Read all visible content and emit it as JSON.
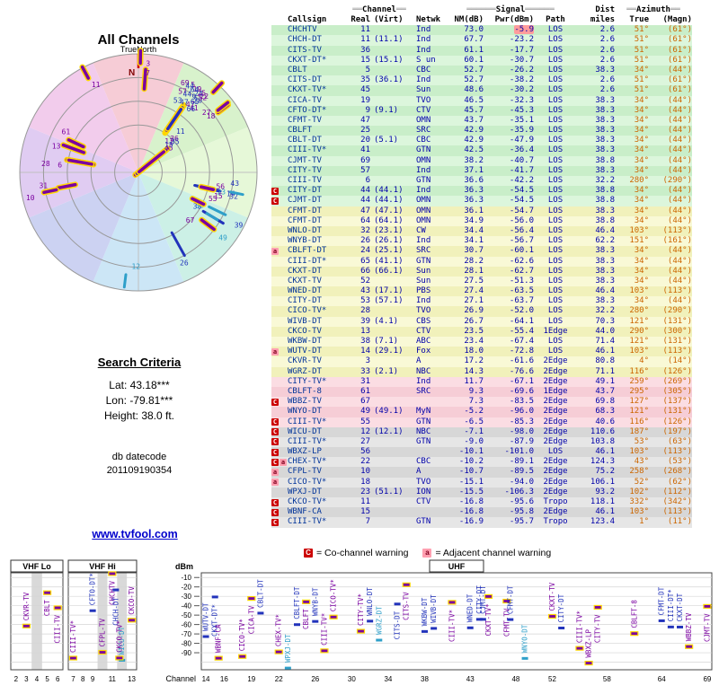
{
  "polar": {
    "title": "All Channels",
    "north_label": "TrueNorth",
    "n": "N"
  },
  "search": {
    "heading": "Search Criteria",
    "lat": "Lat: 43.18***",
    "lon": "Lon: -79.81***",
    "height": "Height: 38.0 ft.",
    "dbc1": "db datecode",
    "dbc2": "201109190354"
  },
  "link": {
    "label": "www.tvfool.com"
  },
  "legend": {
    "c": "C",
    "c_text": "= Co-channel warning",
    "a": "a",
    "a_text": "= Adjacent channel warning"
  },
  "table": {
    "deco": {
      "ch": "══",
      "sig": "══════",
      "az": "══"
    },
    "group": {
      "channel": "Channel",
      "signal": "Signal",
      "dist": "Dist",
      "azimuth": "Azimuth"
    },
    "cols": {
      "callsign": "Callsign",
      "real": "Real",
      "virt": "(Virt)",
      "netwk": "Netwk",
      "nm": "NM(dB)",
      "pwr": "Pwr(dBm)",
      "path": "Path",
      "miles": "miles",
      "true_": "True",
      "magn": "(Magn)"
    },
    "rows": [
      {
        "cs": "CHCHTV",
        "re": "11",
        "vi": "",
        "nw": "Ind",
        "nm": "73.0",
        "pw": "-5.9",
        "pa": "LOS",
        "di": "2.6",
        "tr": "51°",
        "mg": "(61°)",
        "mk": [],
        "z": "g",
        "hot": true
      },
      {
        "cs": "CHCH-DT",
        "re": "11",
        "vi": "(11.1)",
        "nw": "Ind",
        "nm": "67.7",
        "pw": "-23.2",
        "pa": "LOS",
        "di": "2.6",
        "tr": "51°",
        "mg": "(61°)",
        "mk": [],
        "z": "g"
      },
      {
        "cs": "CITS-TV",
        "re": "36",
        "vi": "",
        "nw": "Ind",
        "nm": "61.1",
        "pw": "-17.7",
        "pa": "LOS",
        "di": "2.6",
        "tr": "51°",
        "mg": "(61°)",
        "mk": [],
        "z": "g"
      },
      {
        "cs": "CKXT-DT*",
        "re": "15",
        "vi": "(15.1)",
        "nw": "S un",
        "nm": "60.1",
        "pw": "-30.7",
        "pa": "LOS",
        "di": "2.6",
        "tr": "51°",
        "mg": "(61°)",
        "mk": [],
        "z": "g"
      },
      {
        "cs": "CBLT",
        "re": "5",
        "vi": "",
        "nw": "CBC",
        "nm": "52.7",
        "pw": "-26.2",
        "pa": "LOS",
        "di": "38.3",
        "tr": "34°",
        "mg": "(44°)",
        "mk": [],
        "z": "g"
      },
      {
        "cs": "CITS-DT",
        "re": "35",
        "vi": "(36.1)",
        "nw": "Ind",
        "nm": "52.7",
        "pw": "-38.2",
        "pa": "LOS",
        "di": "2.6",
        "tr": "51°",
        "mg": "(61°)",
        "mk": [],
        "z": "g"
      },
      {
        "cs": "CKXT-TV*",
        "re": "45",
        "vi": "",
        "nw": "Sun",
        "nm": "48.6",
        "pw": "-30.2",
        "pa": "LOS",
        "di": "2.6",
        "tr": "51°",
        "mg": "(61°)",
        "mk": [],
        "z": "g"
      },
      {
        "cs": "CICA-TV",
        "re": "19",
        "vi": "",
        "nw": "TVO",
        "nm": "46.5",
        "pw": "-32.3",
        "pa": "LOS",
        "di": "38.3",
        "tr": "34°",
        "mg": "(44°)",
        "mk": [],
        "z": "g"
      },
      {
        "cs": "CFTO-DT*",
        "re": "9",
        "vi": "(9.1)",
        "nw": "CTV",
        "nm": "45.7",
        "pw": "-45.3",
        "pa": "LOS",
        "di": "38.3",
        "tr": "34°",
        "mg": "(44°)",
        "mk": [],
        "z": "g"
      },
      {
        "cs": "CFMT-TV",
        "re": "47",
        "vi": "",
        "nw": "OMN",
        "nm": "43.7",
        "pw": "-35.1",
        "pa": "LOS",
        "di": "38.3",
        "tr": "34°",
        "mg": "(44°)",
        "mk": [],
        "z": "g"
      },
      {
        "cs": "CBLFT",
        "re": "25",
        "vi": "",
        "nw": "SRC",
        "nm": "42.9",
        "pw": "-35.9",
        "pa": "LOS",
        "di": "38.3",
        "tr": "34°",
        "mg": "(44°)",
        "mk": [],
        "z": "g"
      },
      {
        "cs": "CBLT-DT",
        "re": "20",
        "vi": "(5.1)",
        "nw": "CBC",
        "nm": "42.9",
        "pw": "-47.9",
        "pa": "LOS",
        "di": "38.3",
        "tr": "34°",
        "mg": "(44°)",
        "mk": [],
        "z": "g"
      },
      {
        "cs": "CIII-TV*",
        "re": "41",
        "vi": "",
        "nw": "GTN",
        "nm": "42.5",
        "pw": "-36.4",
        "pa": "LOS",
        "di": "38.3",
        "tr": "34°",
        "mg": "(44°)",
        "mk": [],
        "z": "g"
      },
      {
        "cs": "CJMT-TV",
        "re": "69",
        "vi": "",
        "nw": "OMN",
        "nm": "38.2",
        "pw": "-40.7",
        "pa": "LOS",
        "di": "38.8",
        "tr": "34°",
        "mg": "(44°)",
        "mk": [],
        "z": "g"
      },
      {
        "cs": "CITY-TV",
        "re": "57",
        "vi": "",
        "nw": "Ind",
        "nm": "37.1",
        "pw": "-41.7",
        "pa": "LOS",
        "di": "38.3",
        "tr": "34°",
        "mg": "(44°)",
        "mk": [],
        "z": "g"
      },
      {
        "cs": "CIII-TV",
        "re": "6",
        "vi": "",
        "nw": "GTN",
        "nm": "36.6",
        "pw": "-42.2",
        "pa": "LOS",
        "di": "32.2",
        "tr": "280°",
        "mg": "(290°)",
        "mk": [],
        "z": "g"
      },
      {
        "cs": "CITY-DT",
        "re": "44",
        "vi": "(44.1)",
        "nw": "Ind",
        "nm": "36.3",
        "pw": "-54.5",
        "pa": "LOS",
        "di": "38.8",
        "tr": "34°",
        "mg": "(44°)",
        "mk": [
          "C"
        ],
        "z": "g"
      },
      {
        "cs": "CJMT-DT",
        "re": "44",
        "vi": "(44.1)",
        "nw": "OMN",
        "nm": "36.3",
        "pw": "-54.5",
        "pa": "LOS",
        "di": "38.8",
        "tr": "34°",
        "mg": "(44°)",
        "mk": [
          "C"
        ],
        "z": "g"
      },
      {
        "cs": "CFMT-DT",
        "re": "47",
        "vi": "(47.1)",
        "nw": "OMN",
        "nm": "36.1",
        "pw": "-54.7",
        "pa": "LOS",
        "di": "38.3",
        "tr": "34°",
        "mg": "(44°)",
        "mk": [],
        "z": "y"
      },
      {
        "cs": "CFMT-DT",
        "re": "64",
        "vi": "(64.1)",
        "nw": "OMN",
        "nm": "34.9",
        "pw": "-56.0",
        "pa": "LOS",
        "di": "38.8",
        "tr": "34°",
        "mg": "(44°)",
        "mk": [],
        "z": "y"
      },
      {
        "cs": "WNLO-DT",
        "re": "32",
        "vi": "(23.1)",
        "nw": "CW",
        "nm": "34.4",
        "pw": "-56.4",
        "pa": "LOS",
        "di": "46.4",
        "tr": "103°",
        "mg": "(113°)",
        "mk": [],
        "z": "y"
      },
      {
        "cs": "WNYB-DT",
        "re": "26",
        "vi": "(26.1)",
        "nw": "Ind",
        "nm": "34.1",
        "pw": "-56.7",
        "pa": "LOS",
        "di": "62.2",
        "tr": "151°",
        "mg": "(161°)",
        "mk": [],
        "z": "y"
      },
      {
        "cs": "CBLFT-DT",
        "re": "24",
        "vi": "(25.1)",
        "nw": "SRC",
        "nm": "30.7",
        "pw": "-60.1",
        "pa": "LOS",
        "di": "38.3",
        "tr": "34°",
        "mg": "(44°)",
        "mk": [
          "a"
        ],
        "z": "y"
      },
      {
        "cs": "CIII-DT*",
        "re": "65",
        "vi": "(41.1)",
        "nw": "GTN",
        "nm": "28.2",
        "pw": "-62.6",
        "pa": "LOS",
        "di": "38.3",
        "tr": "34°",
        "mg": "(44°)",
        "mk": [],
        "z": "y"
      },
      {
        "cs": "CKXT-DT",
        "re": "66",
        "vi": "(66.1)",
        "nw": "Sun",
        "nm": "28.1",
        "pw": "-62.7",
        "pa": "LOS",
        "di": "38.3",
        "tr": "34°",
        "mg": "(44°)",
        "mk": [],
        "z": "y"
      },
      {
        "cs": "CKXT-TV",
        "re": "52",
        "vi": "",
        "nw": "Sun",
        "nm": "27.5",
        "pw": "-51.3",
        "pa": "LOS",
        "di": "38.3",
        "tr": "34°",
        "mg": "(44°)",
        "mk": [],
        "z": "y"
      },
      {
        "cs": "WNED-DT",
        "re": "43",
        "vi": "(17.1)",
        "nw": "PBS",
        "nm": "27.4",
        "pw": "-63.5",
        "pa": "LOS",
        "di": "46.4",
        "tr": "103°",
        "mg": "(113°)",
        "mk": [],
        "z": "y"
      },
      {
        "cs": "CITY-DT",
        "re": "53",
        "vi": "(57.1)",
        "nw": "Ind",
        "nm": "27.1",
        "pw": "-63.7",
        "pa": "LOS",
        "di": "38.3",
        "tr": "34°",
        "mg": "(44°)",
        "mk": [],
        "z": "y"
      },
      {
        "cs": "CICO-TV*",
        "re": "28",
        "vi": "",
        "nw": "TVO",
        "nm": "26.9",
        "pw": "-52.0",
        "pa": "LOS",
        "di": "32.2",
        "tr": "280°",
        "mg": "(290°)",
        "mk": [],
        "z": "y"
      },
      {
        "cs": "WIVB-DT",
        "re": "39",
        "vi": "(4.1)",
        "nw": "CBS",
        "nm": "26.7",
        "pw": "-64.1",
        "pa": "LOS",
        "di": "70.3",
        "tr": "121°",
        "mg": "(131°)",
        "mk": [],
        "z": "y"
      },
      {
        "cs": "CKCO-TV",
        "re": "13",
        "vi": "",
        "nw": "CTV",
        "nm": "23.5",
        "pw": "-55.4",
        "pa": "1Edge",
        "di": "44.0",
        "tr": "290°",
        "mg": "(300°)",
        "mk": [],
        "z": "y"
      },
      {
        "cs": "WKBW-DT",
        "re": "38",
        "vi": "(7.1)",
        "nw": "ABC",
        "nm": "23.4",
        "pw": "-67.4",
        "pa": "LOS",
        "di": "71.4",
        "tr": "121°",
        "mg": "(131°)",
        "mk": [],
        "z": "y"
      },
      {
        "cs": "WUTV-DT",
        "re": "14",
        "vi": "(29.1)",
        "nw": "Fox",
        "nm": "18.0",
        "pw": "-72.8",
        "pa": "LOS",
        "di": "46.1",
        "tr": "103°",
        "mg": "(113°)",
        "mk": [
          "a"
        ],
        "z": "y"
      },
      {
        "cs": "CKVR-TV",
        "re": "3",
        "vi": "",
        "nw": "A",
        "nm": "17.2",
        "pw": "-61.6",
        "pa": "2Edge",
        "di": "80.8",
        "tr": "4°",
        "mg": "(14°)",
        "mk": [],
        "z": "y"
      },
      {
        "cs": "WGRZ-DT",
        "re": "33",
        "vi": "(2.1)",
        "nw": "NBC",
        "nm": "14.3",
        "pw": "-76.6",
        "pa": "2Edge",
        "di": "71.1",
        "tr": "116°",
        "mg": "(126°)",
        "mk": [],
        "z": "y"
      },
      {
        "cs": "CITY-TV*",
        "re": "31",
        "vi": "",
        "nw": "Ind",
        "nm": "11.7",
        "pw": "-67.1",
        "pa": "2Edge",
        "di": "49.1",
        "tr": "259°",
        "mg": "(269°)",
        "mk": [],
        "z": "p"
      },
      {
        "cs": "CBLFT-8",
        "re": "61",
        "vi": "",
        "nw": "SRC",
        "nm": "9.3",
        "pw": "-69.6",
        "pa": "1Edge",
        "di": "43.7",
        "tr": "295°",
        "mg": "(305°)",
        "mk": [],
        "z": "p"
      },
      {
        "cs": "WBBZ-TV",
        "re": "67",
        "vi": "",
        "nw": "",
        "nm": "7.3",
        "pw": "-83.5",
        "pa": "2Edge",
        "di": "69.8",
        "tr": "127°",
        "mg": "(137°)",
        "mk": [
          "C"
        ],
        "z": "p"
      },
      {
        "cs": "WNYO-DT",
        "re": "49",
        "vi": "(49.1)",
        "nw": "MyN",
        "nm": "-5.2",
        "pw": "-96.0",
        "pa": "2Edge",
        "di": "68.3",
        "tr": "121°",
        "mg": "(131°)",
        "mk": [],
        "z": "p"
      },
      {
        "cs": "CIII-TV*",
        "re": "55",
        "vi": "",
        "nw": "GTN",
        "nm": "-6.5",
        "pw": "-85.3",
        "pa": "2Edge",
        "di": "40.6",
        "tr": "116°",
        "mg": "(126°)",
        "mk": [
          "C"
        ],
        "z": "p"
      },
      {
        "cs": "WICU-DT",
        "re": "12",
        "vi": "(12.1)",
        "nw": "NBC",
        "nm": "-7.1",
        "pw": "-98.0",
        "pa": "2Edge",
        "di": "110.6",
        "tr": "187°",
        "mg": "(197°)",
        "mk": [
          "C"
        ],
        "z": "s"
      },
      {
        "cs": "CIII-TV*",
        "re": "27",
        "vi": "",
        "nw": "GTN",
        "nm": "-9.0",
        "pw": "-87.9",
        "pa": "2Edge",
        "di": "103.8",
        "tr": "53°",
        "mg": "(63°)",
        "mk": [
          "C"
        ],
        "z": "s"
      },
      {
        "cs": "WBXZ-LP",
        "re": "56",
        "vi": "",
        "nw": "",
        "nm": "-10.1",
        "pw": "-101.0",
        "pa": "LOS",
        "di": "46.1",
        "tr": "103°",
        "mg": "(113°)",
        "mk": [
          "C"
        ],
        "z": "s"
      },
      {
        "cs": "CHEX-TV*",
        "re": "22",
        "vi": "",
        "nw": "CBC",
        "nm": "-10.2",
        "pw": "-89.1",
        "pa": "2Edge",
        "di": "124.3",
        "tr": "43°",
        "mg": "(53°)",
        "mk": [
          "C",
          "a"
        ],
        "z": "s"
      },
      {
        "cs": "CFPL-TV",
        "re": "10",
        "vi": "",
        "nw": "A",
        "nm": "-10.7",
        "pw": "-89.5",
        "pa": "2Edge",
        "di": "75.2",
        "tr": "258°",
        "mg": "(268°)",
        "mk": [
          "a"
        ],
        "z": "s"
      },
      {
        "cs": "CICO-TV*",
        "re": "18",
        "vi": "",
        "nw": "TVO",
        "nm": "-15.1",
        "pw": "-94.0",
        "pa": "2Edge",
        "di": "106.1",
        "tr": "52°",
        "mg": "(62°)",
        "mk": [
          "a"
        ],
        "z": "s"
      },
      {
        "cs": "WPXJ-DT",
        "re": "23",
        "vi": "(51.1)",
        "nw": "ION",
        "nm": "-15.5",
        "pw": "-106.3",
        "pa": "2Edge",
        "di": "93.2",
        "tr": "102°",
        "mg": "(112°)",
        "mk": [],
        "z": "s"
      },
      {
        "cs": "CKCO-TV*",
        "re": "11",
        "vi": "",
        "nw": "CTV",
        "nm": "-16.8",
        "pw": "-95.6",
        "pa": "Tropo",
        "di": "118.1",
        "tr": "332°",
        "mg": "(342°)",
        "mk": [
          "C"
        ],
        "z": "s"
      },
      {
        "cs": "WBNF-CA",
        "re": "15",
        "vi": "",
        "nw": "",
        "nm": "-16.8",
        "pw": "-95.8",
        "pa": "2Edge",
        "di": "46.1",
        "tr": "103°",
        "mg": "(113°)",
        "mk": [
          "C"
        ],
        "z": "s"
      },
      {
        "cs": "CIII-TV*",
        "re": "7",
        "vi": "",
        "nw": "GTN",
        "nm": "-16.9",
        "pw": "-95.7",
        "pa": "Tropo",
        "di": "123.4",
        "tr": "1°",
        "mg": "(11°)",
        "mk": [
          "C"
        ],
        "z": "s"
      }
    ]
  },
  "band": {
    "vhf_lo": "VHF Lo",
    "vhf_hi": "VHF Hi",
    "uhf": "UHF",
    "dbm": "dBm",
    "channel": "Channel",
    "dbm_ticks": [
      "-10",
      "-20",
      "-30",
      "-40",
      "-50",
      "-60",
      "-70",
      "-80",
      "-90"
    ],
    "lo_ticks": [
      "2",
      "3",
      "4",
      "5",
      "6"
    ],
    "hi_ticks": [
      "7",
      "8",
      "9",
      "11",
      "13"
    ],
    "uhf_ticks": [
      "14",
      "16",
      "19",
      "22",
      "26",
      "30",
      "34",
      "38",
      "43",
      "48",
      "52",
      "58",
      "64",
      "69"
    ]
  },
  "colors": {
    "analog": "#7a00a0",
    "outline": "#ffd700",
    "digital": "#2233bb",
    "path": {
      "LOS": "#2233bb",
      "1Edge": "#3377cc",
      "2Edge": "#2e9fc9",
      "Tropo": "#7788aa"
    },
    "cochannel": "#cc0000",
    "adjacent": "#ff9fb0",
    "azimuth": "#cc6600",
    "wedges": [
      "#f6ccd6",
      "#d8f2cc",
      "#e6f8d8",
      "#ccf0e6",
      "#cce6f6",
      "#ccd2f2",
      "#e0ccf2",
      "#f2ccec"
    ],
    "zones": {
      "g": [
        "#c9eec9",
        "#dcf6dc"
      ],
      "y": [
        "#f1f1bb",
        "#f9f9d6"
      ],
      "p": [
        "#f6cdd6",
        "#fbdde3"
      ],
      "s": [
        "#d7d7d7",
        "#e6e6e6"
      ]
    }
  }
}
